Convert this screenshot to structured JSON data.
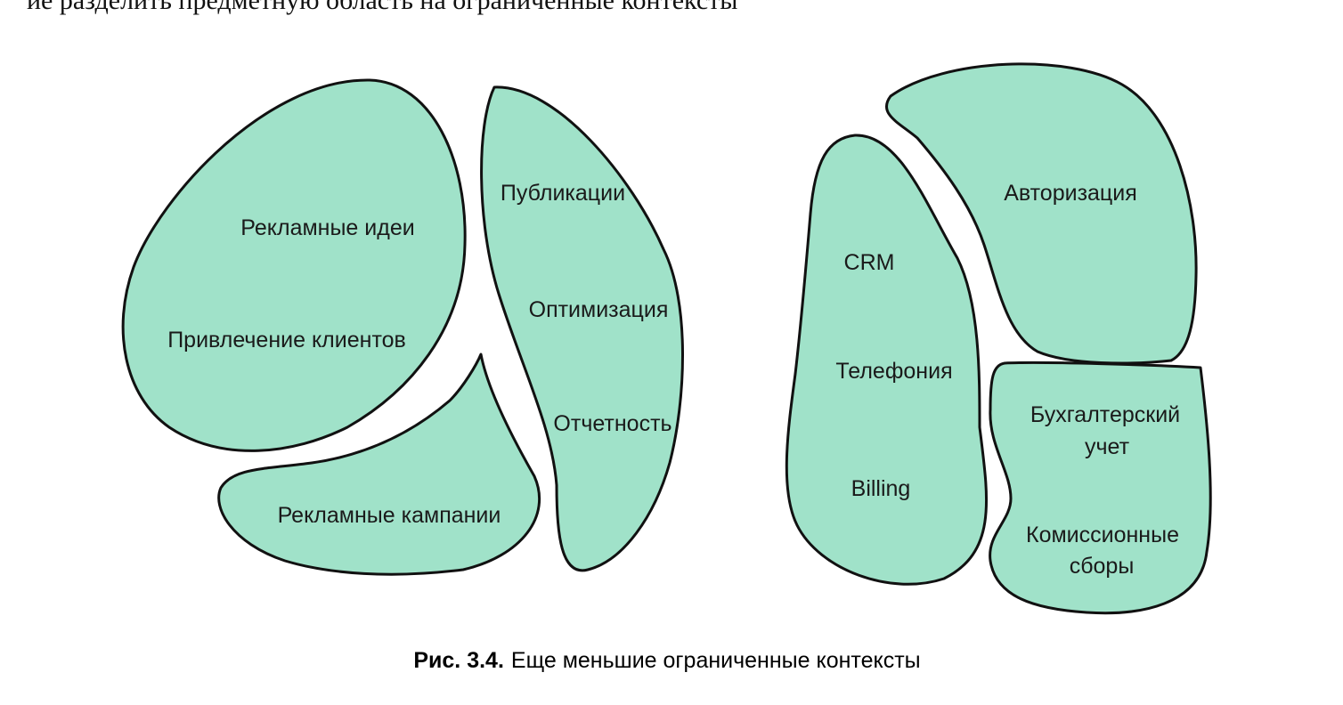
{
  "top_text": "ие разделить предметную область на ограниченные контексты",
  "contexts": {
    "advertising": {
      "label_1": "Рекламные идеи",
      "label_2": "Привлечение клиентов"
    },
    "campaigns": {
      "label": "Рекламные кампании"
    },
    "content": {
      "label_1": "Публикации",
      "label_2": "Оптимизация",
      "label_3": "Отчетность"
    },
    "crm": {
      "label_1": "CRM",
      "label_2": "Телефония",
      "label_3": "Billing"
    },
    "auth": {
      "label": "Авторизация"
    },
    "accounting": {
      "label_1a": "Бухгалтерский",
      "label_1b": "учет",
      "label_2a": "Комиссионные",
      "label_2b": "сборы"
    }
  },
  "caption": {
    "number": "Рис. 3.4.",
    "text": "Еще меньшие ограниченные контексты"
  },
  "colors": {
    "fill": "#a0e2c9",
    "stroke": "#111111"
  }
}
